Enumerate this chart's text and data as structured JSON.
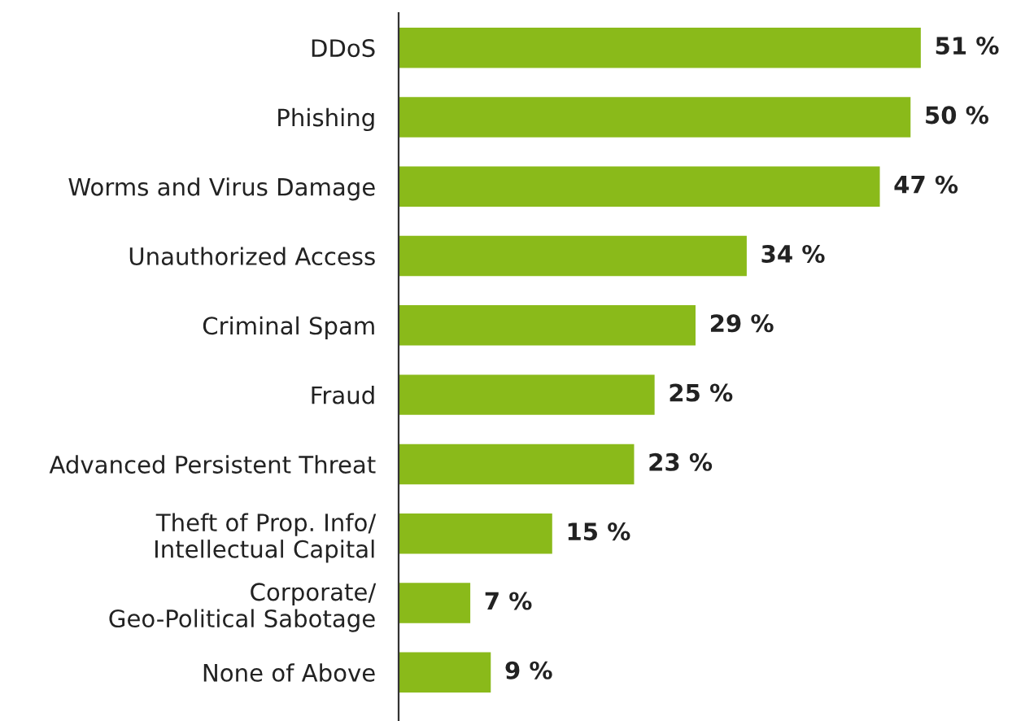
{
  "chart_data": {
    "type": "bar",
    "orientation": "horizontal",
    "categories": [
      "DDoS",
      "Phishing",
      "Worms and Virus Damage",
      "Unauthorized Access",
      "Criminal Spam",
      "Fraud",
      "Advanced Persistent Threat",
      "Theft of Prop. Info/\nIntellectual Capital",
      "Corporate/\nGeo-Political Sabotage",
      "None of Above"
    ],
    "values": [
      51,
      50,
      47,
      34,
      29,
      25,
      23,
      15,
      7,
      9
    ],
    "value_labels": [
      "51 %",
      "50 %",
      "47 %",
      "34 %",
      "29 %",
      "25 %",
      "23 %",
      "15 %",
      "7 %",
      "9 %"
    ],
    "color": "#8aba1a",
    "tick_labels": "y",
    "grid": false,
    "legend": false
  }
}
